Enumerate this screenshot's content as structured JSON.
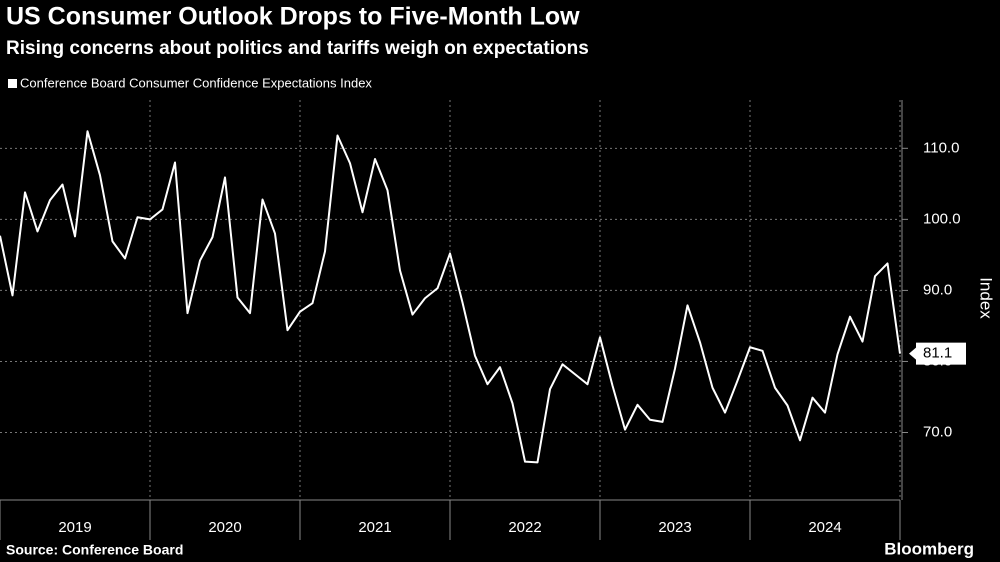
{
  "chart_data": {
    "type": "line",
    "title": "US Consumer Outlook Drops to Five-Month Low",
    "subtitle": "Rising concerns about politics and tariffs weigh on expectations",
    "y_label": "Index",
    "source": "Source: Conference Board",
    "brand": "Bloomberg",
    "categories": [
      null,
      null,
      null,
      null,
      null,
      null,
      "2019",
      null,
      null,
      null,
      null,
      null,
      null,
      null,
      null,
      null,
      null,
      null,
      "2020",
      null,
      null,
      null,
      null,
      null,
      null,
      null,
      null,
      null,
      null,
      null,
      "2021",
      null,
      null,
      null,
      null,
      null,
      null,
      null,
      null,
      null,
      null,
      null,
      "2022",
      null,
      null,
      null,
      null,
      null,
      null,
      null,
      null,
      null,
      null,
      null,
      "2023",
      null,
      null,
      null,
      null,
      null,
      null,
      null,
      null,
      null,
      null,
      null,
      "2024",
      null,
      null,
      null,
      null,
      null,
      null
    ],
    "series": [
      {
        "name": "Conference Board Consumer Confidence Expectations Index",
        "color": "#ffffff",
        "values": [
          97.7,
          89.3,
          103.8,
          98.3,
          102.7,
          104.9,
          97.6,
          112.4,
          106.2,
          96.9,
          94.5,
          100.3,
          100.0,
          101.4,
          108.0,
          86.8,
          94.2,
          97.5,
          105.9,
          89.0,
          86.8,
          102.8,
          98.0,
          84.4,
          87.0,
          88.2,
          95.5,
          111.8,
          107.9,
          101.0,
          108.5,
          104.1,
          92.8,
          86.6,
          88.9,
          90.3,
          95.2,
          88.3,
          80.8,
          76.8,
          79.2,
          74.1,
          65.9,
          65.8,
          76.1,
          79.6,
          78.2,
          76.8,
          83.4,
          76.6,
          70.4,
          73.9,
          71.8,
          71.5,
          79.0,
          87.9,
          82.7,
          76.3,
          72.8,
          77.3,
          82.0,
          81.5,
          76.3,
          73.8,
          68.9,
          74.9,
          72.8,
          81.0,
          86.3,
          82.8,
          92.0,
          93.8,
          81.1
        ]
      }
    ],
    "ylim": [
      60.5,
      116.8
    ],
    "yticks": [
      {
        "value": 70,
        "label": "70.0"
      },
      {
        "value": 80,
        "label": "80.0"
      },
      {
        "value": 90,
        "label": "90.0"
      },
      {
        "value": 100,
        "label": "100.0"
      },
      {
        "value": 110,
        "label": "110.0"
      }
    ],
    "grid": true
  }
}
